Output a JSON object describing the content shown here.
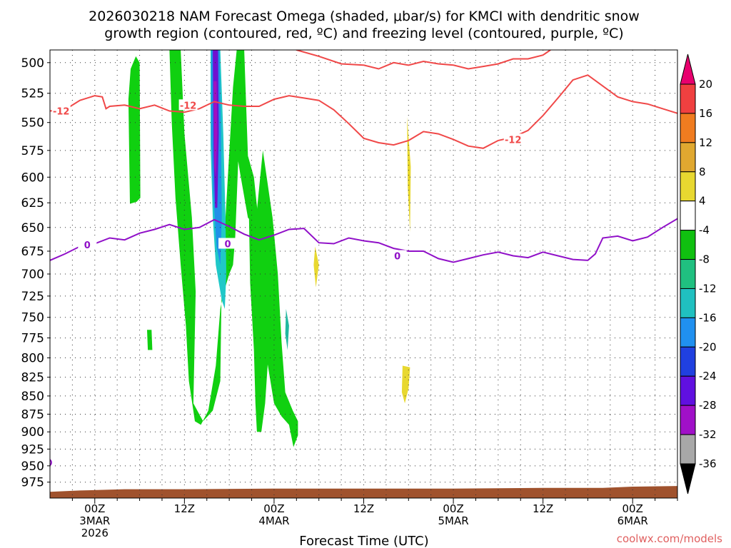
{
  "chart_data": {
    "type": "heatmap",
    "title_line1": "2026030218 NAM Forecast Omega (shaded, μbar/s) for KMCI with dendritic snow",
    "title_line2": "growth region (contoured, red, ºC) and freezing level (contoured, purple, ºC)",
    "xlabel": "Forecast Time (UTC)",
    "credit": "coolwx.com/models",
    "xlim_hours": [
      -6,
      78
    ],
    "ylim_hPa": [
      1000,
      490
    ],
    "y_scale": "log-pressure (inverted)",
    "grid": "dotted",
    "y_ticks": [
      500,
      525,
      550,
      575,
      600,
      625,
      650,
      675,
      700,
      725,
      750,
      775,
      800,
      825,
      850,
      875,
      900,
      925,
      950,
      975
    ],
    "x_ticks": [
      {
        "hour": 0,
        "lines": [
          "00Z",
          "3MAR",
          "2026"
        ]
      },
      {
        "hour": 12,
        "lines": [
          "12Z"
        ]
      },
      {
        "hour": 24,
        "lines": [
          "00Z",
          "4MAR"
        ]
      },
      {
        "hour": 36,
        "lines": [
          "12Z"
        ]
      },
      {
        "hour": 48,
        "lines": [
          "00Z",
          "5MAR"
        ]
      },
      {
        "hour": 60,
        "lines": [
          "12Z"
        ]
      },
      {
        "hour": 72,
        "lines": [
          "00Z",
          "6MAR"
        ]
      }
    ],
    "colorbar": {
      "labels": [
        "20",
        "16",
        "12",
        "8",
        "4",
        "-4",
        "-8",
        "-12",
        "-16",
        "-20",
        "-24",
        "-28",
        "-32",
        "-36"
      ],
      "bins": [
        {
          "color": "#e8006e"
        },
        {
          "color": "#f04040"
        },
        {
          "color": "#f07c20"
        },
        {
          "color": "#e0a830"
        },
        {
          "color": "#e8d830"
        },
        {
          "color": "#ffffff"
        },
        {
          "color": "#10c010"
        },
        {
          "color": "#20c080"
        },
        {
          "color": "#20c0c0"
        },
        {
          "color": "#2090f0"
        },
        {
          "color": "#2040e0"
        },
        {
          "color": "#6010e0"
        },
        {
          "color": "#a010c8"
        },
        {
          "color": "#a8a8a8"
        },
        {
          "color": "#000000"
        }
      ]
    },
    "colors": {
      "green": "#10d010",
      "cyan": "#20c8c8",
      "teal": "#20b8a0",
      "blue": "#2090e8",
      "purple_core": "#7010d0",
      "violet_core": "#a010c0",
      "yellow": "#e8d830",
      "dgz_line": "#f04848",
      "freezing_line": "#9010c8",
      "ground": "#a0522d"
    },
    "dgz_label": "-12",
    "freezing_label": "0",
    "dgz_top": [
      [
        27,
        490
      ],
      [
        30,
        495
      ],
      [
        33,
        501
      ],
      [
        36,
        502
      ],
      [
        38,
        505
      ],
      [
        40,
        500
      ],
      [
        42,
        502
      ],
      [
        44,
        499
      ],
      [
        46,
        501
      ],
      [
        48,
        502
      ],
      [
        50,
        505
      ],
      [
        52,
        503
      ],
      [
        54,
        501
      ],
      [
        56,
        497
      ],
      [
        58,
        497
      ],
      [
        60,
        494
      ],
      [
        61,
        490
      ]
    ],
    "dgz_bottom": [
      [
        -6,
        540
      ],
      [
        -4,
        539
      ],
      [
        -2,
        531
      ],
      [
        0,
        527
      ],
      [
        1,
        528
      ],
      [
        1.5,
        538
      ],
      [
        2,
        536
      ],
      [
        4,
        535
      ],
      [
        6,
        538
      ],
      [
        8,
        535
      ],
      [
        10,
        540
      ],
      [
        12,
        541
      ],
      [
        14,
        538
      ],
      [
        16,
        532
      ],
      [
        18,
        535
      ],
      [
        20,
        536
      ],
      [
        22,
        536
      ],
      [
        24,
        530
      ],
      [
        26,
        527
      ],
      [
        28,
        529
      ],
      [
        30,
        531
      ],
      [
        32,
        539
      ],
      [
        34,
        551
      ],
      [
        36,
        564
      ],
      [
        38,
        568
      ],
      [
        40,
        570
      ],
      [
        42,
        566
      ],
      [
        44,
        558
      ],
      [
        46,
        560
      ],
      [
        48,
        565
      ],
      [
        50,
        571
      ],
      [
        52,
        573
      ],
      [
        54,
        566
      ],
      [
        56,
        563
      ],
      [
        58,
        557
      ],
      [
        60,
        544
      ],
      [
        62,
        529
      ],
      [
        64,
        514
      ],
      [
        66,
        510
      ],
      [
        68,
        519
      ],
      [
        70,
        528
      ],
      [
        72,
        532
      ],
      [
        74,
        534
      ],
      [
        76,
        538
      ],
      [
        78,
        542
      ]
    ],
    "freezing_level": [
      [
        -6,
        685
      ],
      [
        -4,
        678
      ],
      [
        -2,
        670
      ],
      [
        0,
        667
      ],
      [
        2,
        661
      ],
      [
        4,
        663
      ],
      [
        6,
        656
      ],
      [
        8,
        652
      ],
      [
        10,
        647
      ],
      [
        12,
        652
      ],
      [
        14,
        650
      ],
      [
        16,
        642
      ],
      [
        18,
        649
      ],
      [
        20,
        657
      ],
      [
        22,
        663
      ],
      [
        24,
        658
      ],
      [
        26,
        652
      ],
      [
        28,
        651
      ],
      [
        30,
        666
      ],
      [
        32,
        667
      ],
      [
        34,
        661
      ],
      [
        36,
        664
      ],
      [
        38,
        666
      ],
      [
        40,
        672
      ],
      [
        42,
        675
      ],
      [
        44,
        675
      ],
      [
        46,
        683
      ],
      [
        48,
        687
      ],
      [
        50,
        683
      ],
      [
        52,
        679
      ],
      [
        54,
        676
      ],
      [
        56,
        680
      ],
      [
        58,
        682
      ],
      [
        60,
        676
      ],
      [
        62,
        680
      ],
      [
        64,
        684
      ],
      [
        66,
        685
      ],
      [
        67,
        678
      ],
      [
        68,
        661
      ],
      [
        70,
        659
      ],
      [
        72,
        664
      ],
      [
        74,
        660
      ],
      [
        76,
        650
      ],
      [
        78,
        641
      ]
    ],
    "ground": [
      [
        -6,
        990
      ],
      [
        -2,
        988
      ],
      [
        4,
        986
      ],
      [
        12,
        986
      ],
      [
        24,
        985
      ],
      [
        36,
        985
      ],
      [
        48,
        985
      ],
      [
        60,
        984
      ],
      [
        68,
        984
      ],
      [
        72,
        982
      ],
      [
        78,
        981
      ]
    ],
    "omega_regions": [
      {
        "color": "green",
        "points": [
          [
            10,
            490
          ],
          [
            11.5,
            490
          ],
          [
            12,
            560
          ],
          [
            13,
            640
          ],
          [
            13.5,
            720
          ],
          [
            13.2,
            860
          ],
          [
            14.5,
            885
          ],
          [
            15.8,
            870
          ],
          [
            16.8,
            830
          ],
          [
            17,
            700
          ],
          [
            17.5,
            640
          ],
          [
            18.5,
            520
          ],
          [
            19,
            490
          ],
          [
            20,
            490
          ],
          [
            20.5,
            580
          ],
          [
            21.5,
            650
          ],
          [
            22.3,
            720
          ],
          [
            23,
            800
          ],
          [
            24,
            860
          ],
          [
            25,
            878
          ],
          [
            26,
            890
          ],
          [
            26.6,
            922
          ],
          [
            27.2,
            905
          ],
          [
            27.2,
            885
          ],
          [
            26.5,
            870
          ],
          [
            25.5,
            845
          ],
          [
            25,
            780
          ],
          [
            24.5,
            700
          ],
          [
            23.8,
            640
          ],
          [
            22.5,
            575
          ],
          [
            21.5,
            648
          ],
          [
            20.5,
            640
          ],
          [
            19.5,
            598
          ],
          [
            19.2,
            585
          ],
          [
            18.8,
            660
          ],
          [
            18.5,
            690
          ],
          [
            18,
            700
          ],
          [
            17.3,
            720
          ],
          [
            16.8,
            740
          ],
          [
            16.2,
            810
          ],
          [
            15.2,
            870
          ],
          [
            14.2,
            890
          ],
          [
            13.4,
            885
          ],
          [
            12.6,
            830
          ],
          [
            12.2,
            760
          ],
          [
            11.5,
            690
          ],
          [
            10.8,
            620
          ],
          [
            10.3,
            550
          ]
        ]
      },
      {
        "color": "green",
        "points": [
          [
            20.5,
            580
          ],
          [
            20.8,
            710
          ],
          [
            21.3,
            790
          ],
          [
            21.5,
            860
          ],
          [
            21.7,
            900
          ],
          [
            22.3,
            900
          ],
          [
            22.8,
            860
          ],
          [
            23.2,
            800
          ],
          [
            22.5,
            720
          ],
          [
            22,
            650
          ],
          [
            21.3,
            600
          ]
        ]
      },
      {
        "color": "cyan",
        "points": [
          [
            15.5,
            490
          ],
          [
            16.8,
            490
          ],
          [
            17.2,
            560
          ],
          [
            17.5,
            640
          ],
          [
            17.6,
            700
          ],
          [
            17.4,
            740
          ],
          [
            17,
            730
          ],
          [
            16.2,
            690
          ],
          [
            15.8,
            640
          ],
          [
            15.5,
            570
          ]
        ]
      },
      {
        "color": "blue",
        "points": [
          [
            15.6,
            490
          ],
          [
            16.7,
            490
          ],
          [
            16.9,
            560
          ],
          [
            17,
            640
          ],
          [
            16.8,
            690
          ],
          [
            16.3,
            670
          ],
          [
            15.8,
            610
          ],
          [
            15.6,
            560
          ]
        ]
      },
      {
        "color": "purple_core",
        "points": [
          [
            15.8,
            490
          ],
          [
            16.5,
            490
          ],
          [
            16.6,
            560
          ],
          [
            16.4,
            630
          ],
          [
            16.1,
            630
          ],
          [
            15.9,
            580
          ]
        ]
      },
      {
        "color": "violet_core",
        "points": [
          [
            15.9,
            515
          ],
          [
            16.3,
            515
          ],
          [
            16.4,
            560
          ],
          [
            16.2,
            600
          ],
          [
            16,
            590
          ]
        ]
      },
      {
        "color": "green",
        "points": [
          [
            4.5,
            530
          ],
          [
            4.8,
            505
          ],
          [
            5.5,
            495
          ],
          [
            6,
            500
          ],
          [
            6.1,
            620
          ],
          [
            5.6,
            624
          ],
          [
            4.7,
            626
          ]
        ]
      },
      {
        "color": "green",
        "points": [
          [
            7,
            765
          ],
          [
            7.6,
            765
          ],
          [
            7.7,
            790
          ],
          [
            7.1,
            790
          ]
        ]
      },
      {
        "color": "teal",
        "points": [
          [
            25.6,
            740
          ],
          [
            26,
            760
          ],
          [
            25.8,
            790
          ],
          [
            25.5,
            770
          ]
        ]
      },
      {
        "color": "yellow",
        "points": [
          [
            41.8,
            545
          ],
          [
            42.3,
            590
          ],
          [
            42.2,
            655
          ],
          [
            41.9,
            610
          ]
        ]
      },
      {
        "color": "yellow",
        "points": [
          [
            29.5,
            670
          ],
          [
            30,
            690
          ],
          [
            29.6,
            715
          ],
          [
            29.3,
            690
          ]
        ]
      },
      {
        "color": "yellow",
        "points": [
          [
            41.2,
            810
          ],
          [
            42.2,
            812
          ],
          [
            42,
            840
          ],
          [
            41.5,
            860
          ],
          [
            41.1,
            845
          ]
        ]
      }
    ]
  }
}
